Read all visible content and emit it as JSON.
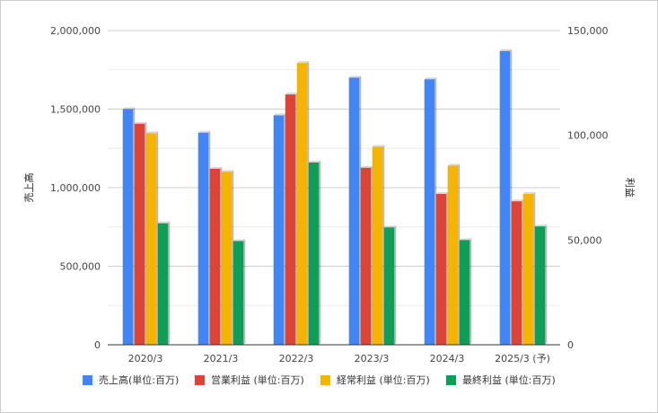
{
  "chart_data": {
    "type": "bar",
    "categories": [
      "2020/3",
      "2021/3",
      "2022/3",
      "2023/3",
      "2024/3",
      "2025/3 (予)"
    ],
    "series": [
      {
        "name": "売上高(単位:百万)",
        "axis": "left",
        "color": "#4285f4",
        "values": [
          1500000,
          1350000,
          1460000,
          1700000,
          1690000,
          1870000
        ]
      },
      {
        "name": "営業利益 (単位:百万)",
        "axis": "right",
        "color": "#db4437",
        "values": [
          105500,
          84000,
          119500,
          84500,
          72000,
          68500
        ]
      },
      {
        "name": "経常利益 (単位:百万)",
        "axis": "right",
        "color": "#f4b400",
        "values": [
          101000,
          82500,
          134500,
          94500,
          85500,
          72000
        ]
      },
      {
        "name": "最終利益 (単位:百万)",
        "axis": "right",
        "color": "#0f9d58",
        "values": [
          58000,
          49500,
          87000,
          56000,
          50000,
          56500
        ]
      }
    ],
    "ylabel_left": "売上高",
    "ylabel_right": "利益",
    "ylim_left": [
      0,
      2000000
    ],
    "ylim_right": [
      0,
      150000
    ],
    "yticks_left": [
      "0",
      "500,000",
      "1,000,000",
      "1,500,000",
      "2,000,000"
    ],
    "yticks_right": [
      "0",
      "50,000",
      "100,000",
      "150,000"
    ],
    "grid": true,
    "legend_position": "bottom"
  }
}
